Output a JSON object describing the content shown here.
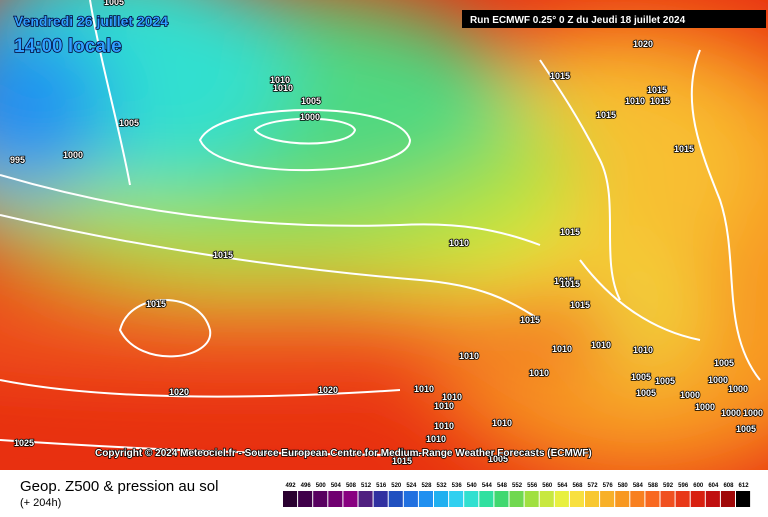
{
  "header": {
    "date": "Vendredi 26 juillet 2024",
    "time": "14:00 locale",
    "run": "Run ECMWF 0.25° 0 Z du Jeudi 18 juillet 2024"
  },
  "isobar_labels": [
    "1005",
    "1020",
    "1015",
    "1015",
    "1010",
    "1015",
    "1010",
    "1010",
    "1005",
    "1005",
    "1000",
    "1015",
    "1000",
    "995",
    "1015",
    "1010",
    "1015",
    "1015",
    "1015",
    "1015",
    "1015",
    "1015",
    "1015",
    "1010",
    "1010",
    "1010",
    "1010",
    "1005",
    "1010",
    "1005",
    "1005",
    "1000",
    "1000",
    "1000",
    "1010",
    "1010",
    "1010",
    "1020",
    "1020",
    "1005",
    "1010",
    "1010",
    "1000",
    "1000",
    "1000",
    "1005",
    "1025",
    "1010",
    "1015",
    "1005"
  ],
  "copyright": "Copyright © 2024 Meteociel.fr - Source European Centre for Medium-Range Weather Forecasts (ECMWF)",
  "footer": {
    "title": "Geop. Z500 & pression au sol",
    "lead": "(+ 204h)"
  },
  "legend": {
    "labels": [
      492,
      496,
      500,
      504,
      508,
      512,
      516,
      520,
      524,
      528,
      532,
      536,
      540,
      544,
      548,
      552,
      556,
      560,
      564,
      568,
      572,
      576,
      580,
      584,
      588,
      592,
      596,
      600,
      604,
      608,
      612
    ],
    "colors": [
      "#2a0030",
      "#40004a",
      "#580060",
      "#700070",
      "#880080",
      "#502080",
      "#3030a0",
      "#2050c0",
      "#2070e0",
      "#2090f0",
      "#20b0f0",
      "#30d0f0",
      "#30e0d0",
      "#30e0a0",
      "#40d870",
      "#70d850",
      "#a0e040",
      "#c8e840",
      "#e8f040",
      "#f8e040",
      "#f8c830",
      "#f8b028",
      "#f89820",
      "#f88020",
      "#f86820",
      "#f05020",
      "#e83818",
      "#d82010",
      "#c01010",
      "#a00808",
      "#000000"
    ]
  }
}
